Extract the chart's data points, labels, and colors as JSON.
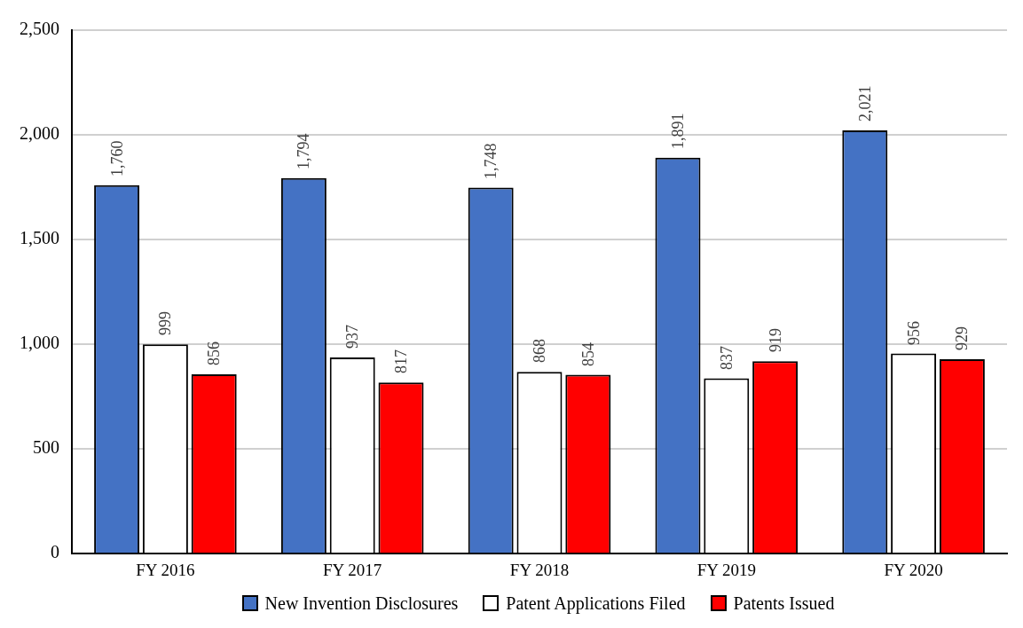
{
  "chart_data": {
    "type": "bar",
    "categories": [
      "FY 2016",
      "FY 2017",
      "FY 2018",
      "FY 2019",
      "FY 2020"
    ],
    "series": [
      {
        "name": "New Invention Disclosures",
        "color": "#4472c4",
        "values": [
          1760,
          1794,
          1748,
          1891,
          2021
        ],
        "value_labels": [
          "1,760",
          "1,794",
          "1,748",
          "1,891",
          "2,021"
        ]
      },
      {
        "name": "Patent Applications Filed",
        "color": "#ffffff",
        "values": [
          999,
          937,
          868,
          837,
          956
        ],
        "value_labels": [
          "999",
          "937",
          "868",
          "837",
          "956"
        ]
      },
      {
        "name": "Patents Issued",
        "color": "#ff0000",
        "values": [
          856,
          817,
          854,
          919,
          929
        ],
        "value_labels": [
          "856",
          "817",
          "854",
          "919",
          "929"
        ]
      }
    ],
    "ylim": [
      0,
      2500
    ],
    "yticks": [
      0,
      {
        "value": 500,
        "label": "500"
      },
      {
        "value": 1000,
        "label": "1,000"
      },
      {
        "value": 1500,
        "label": "1,500"
      },
      {
        "value": 2000,
        "label": "2,000"
      },
      {
        "value": 2500,
        "label": "2,500"
      }
    ],
    "grid": "y",
    "legend": "bottom"
  }
}
